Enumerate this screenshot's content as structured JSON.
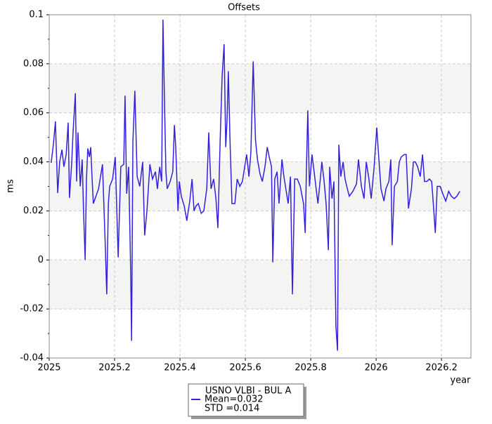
{
  "chart_data": {
    "type": "line",
    "title": "Offsets",
    "xlabel": "year",
    "ylabel": "ms",
    "x": [
      2025.006,
      2025.013,
      2025.019,
      2025.026,
      2025.032,
      2025.039,
      2025.045,
      2025.052,
      2025.058,
      2025.062,
      2025.069,
      2025.073,
      2025.08,
      2025.084,
      2025.088,
      2025.095,
      2025.101,
      2025.105,
      2025.11,
      2025.114,
      2025.118,
      2025.123,
      2025.127,
      2025.131,
      2025.135,
      2025.151,
      2025.163,
      2025.172,
      2025.176,
      2025.181,
      2025.185,
      2025.194,
      2025.202,
      2025.211,
      2025.219,
      2025.228,
      2025.232,
      2025.237,
      2025.243,
      2025.249,
      2025.252,
      2025.256,
      2025.262,
      2025.269,
      2025.277,
      2025.286,
      2025.292,
      2025.299,
      2025.308,
      2025.316,
      2025.325,
      2025.331,
      2025.338,
      2025.344,
      2025.348,
      2025.353,
      2025.357,
      2025.361,
      2025.37,
      2025.378,
      2025.383,
      2025.387,
      2025.394,
      2025.398,
      2025.404,
      2025.413,
      2025.421,
      2025.43,
      2025.437,
      2025.443,
      2025.449,
      2025.456,
      2025.465,
      2025.473,
      2025.482,
      2025.488,
      2025.495,
      2025.503,
      2025.51,
      2025.516,
      2025.523,
      2025.529,
      2025.535,
      2025.54,
      2025.544,
      2025.548,
      2025.553,
      2025.559,
      2025.568,
      2025.575,
      2025.583,
      2025.591,
      2025.598,
      2025.604,
      2025.611,
      2025.617,
      2025.624,
      2025.631,
      2025.637,
      2025.645,
      2025.652,
      2025.66,
      2025.667,
      2025.673,
      2025.68,
      2025.684,
      2025.69,
      2025.697,
      2025.703,
      2025.712,
      2025.718,
      2025.725,
      2025.731,
      2025.738,
      2025.744,
      2025.751,
      2025.759,
      2025.768,
      2025.778,
      2025.783,
      2025.787,
      2025.791,
      2025.796,
      2025.804,
      2025.813,
      2025.822,
      2025.83,
      2025.834,
      2025.841,
      2025.847,
      2025.854,
      2025.858,
      2025.865,
      2025.871,
      2025.877,
      2025.882,
      2025.886,
      2025.892,
      2025.899,
      2025.905,
      2025.912,
      2025.918,
      2025.929,
      2025.94,
      2025.946,
      2025.955,
      2025.963,
      2025.97,
      2025.978,
      2025.985,
      2025.994,
      2026.002,
      2026.009,
      2026.015,
      2026.024,
      2026.03,
      2026.039,
      2026.045,
      2026.049,
      2026.056,
      2026.065,
      2026.071,
      2026.077,
      2026.086,
      2026.092,
      2026.099,
      2026.108,
      2026.114,
      2026.12,
      2026.127,
      2026.135,
      2026.142,
      2026.148,
      2026.155,
      2026.163,
      2026.17,
      2026.176,
      2026.181,
      2026.187,
      2026.196,
      2026.204,
      2026.213,
      2026.222,
      2026.23,
      2026.239,
      2026.247,
      2026.256
    ],
    "series": [
      {
        "name": "USNO VLBI - BUL A",
        "color": "#3322dd",
        "values": [
          0.0396,
          0.0473,
          0.0565,
          0.0273,
          0.04,
          0.045,
          0.038,
          0.043,
          0.056,
          0.0253,
          0.04,
          0.052,
          0.068,
          0.032,
          0.052,
          0.03,
          0.041,
          0.02,
          0.0,
          0.033,
          0.0455,
          0.042,
          0.046,
          0.034,
          0.023,
          0.029,
          0.039,
          0.004,
          -0.014,
          0.023,
          0.03,
          0.033,
          0.042,
          0.001,
          0.038,
          0.039,
          0.067,
          0.027,
          0.038,
          -0.003,
          -0.033,
          0.048,
          0.069,
          0.034,
          0.03,
          0.04,
          0.01,
          0.02,
          0.039,
          0.033,
          0.036,
          0.029,
          0.038,
          0.032,
          0.098,
          0.062,
          0.036,
          0.029,
          0.032,
          0.036,
          0.055,
          0.046,
          0.02,
          0.032,
          0.026,
          0.022,
          0.016,
          0.024,
          0.033,
          0.02,
          0.022,
          0.023,
          0.019,
          0.02,
          0.029,
          0.052,
          0.029,
          0.033,
          0.025,
          0.013,
          0.049,
          0.075,
          0.088,
          0.046,
          0.057,
          0.077,
          0.049,
          0.023,
          0.023,
          0.033,
          0.03,
          0.032,
          0.038,
          0.043,
          0.034,
          0.044,
          0.081,
          0.049,
          0.041,
          0.035,
          0.032,
          0.038,
          0.046,
          0.042,
          0.038,
          -0.001,
          0.033,
          0.036,
          0.023,
          0.041,
          0.034,
          0.028,
          0.023,
          0.034,
          -0.014,
          0.033,
          0.033,
          0.03,
          0.023,
          0.011,
          0.038,
          0.061,
          0.03,
          0.043,
          0.033,
          0.023,
          0.034,
          0.04,
          0.032,
          0.023,
          0.004,
          0.038,
          0.025,
          0.032,
          -0.027,
          -0.037,
          0.047,
          0.034,
          0.04,
          0.033,
          0.029,
          0.026,
          0.028,
          0.031,
          0.041,
          0.03,
          0.025,
          0.04,
          0.033,
          0.025,
          0.038,
          0.054,
          0.04,
          0.029,
          0.024,
          0.029,
          0.032,
          0.041,
          0.006,
          0.03,
          0.032,
          0.04,
          0.042,
          0.043,
          0.043,
          0.021,
          0.029,
          0.04,
          0.04,
          0.038,
          0.034,
          0.043,
          0.032,
          0.032,
          0.033,
          0.032,
          0.021,
          0.011,
          0.03,
          0.03,
          0.027,
          0.024,
          0.028,
          0.026,
          0.025,
          0.026,
          0.028
        ]
      }
    ],
    "legend_lines": [
      "Mean=0.032",
      "STD =0.014"
    ],
    "xlim": [
      2025,
      2026.29
    ],
    "xticks": [
      2025,
      2025.2,
      2025.4,
      2025.6,
      2025.8,
      2026,
      2026.2
    ],
    "ylim": [
      -0.04,
      0.1
    ],
    "yticks": [
      -0.04,
      -0.02,
      0,
      0.02,
      0.04,
      0.06,
      0.08,
      0.1
    ],
    "grid": true,
    "bands": true
  }
}
